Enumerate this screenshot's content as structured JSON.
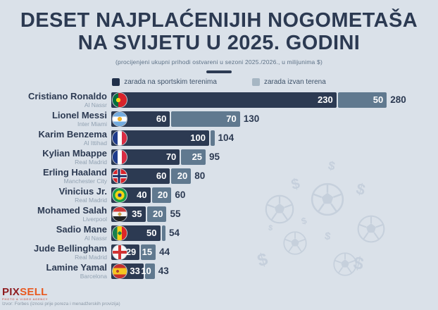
{
  "header": {
    "title_line1": "DESET NAJPLAĆENIJIH NOGOMETAŠA",
    "title_line2": "NA SVIJETU U 2025. GODINI",
    "subtitle": "(procijenjeni ukupni prihodi ostvareni u sezoni 2025./2026., u milijunima $)"
  },
  "legend": {
    "on_label": "zarada na sportskim terenima",
    "off_label": "zarada izvan terena"
  },
  "colors": {
    "background": "#dae1e9",
    "bar_on_field": "#2c3a52",
    "bar_off_field": "#60798f",
    "legend_off_swatch": "#a6b6c3",
    "title_text": "#2c3a52",
    "watermark": "#c2cdda"
  },
  "chart_data": {
    "type": "bar",
    "orientation": "horizontal",
    "stacked": true,
    "title": "DESET NAJPLAĆENIJIH NOGOMETAŠA NA SVIJETU U 2025. GODINI",
    "subtitle": "(procijenjeni ukupni prihodi ostvareni u sezoni 2025./2026., u milijunima $)",
    "unit": "milijuni $",
    "xlim": [
      0,
      280
    ],
    "legend_position": "top",
    "categories": [
      "Cristiano Ronaldo",
      "Lionel Messi",
      "Karim Benzema",
      "Kylian Mbappe",
      "Erling Haaland",
      "Vinicius Jr.",
      "Mohamed Salah",
      "Sadio Mane",
      "Jude Bellingham",
      "Lamine Yamal"
    ],
    "category_sublabels": [
      "Al Nassr",
      "Inter Miami",
      "Al Ittihad",
      "Real Madrid",
      "Manchester City",
      "Real Madrid",
      "Liverpool",
      "Al Nassr",
      "Real Madrid",
      "Barcelona"
    ],
    "series": [
      {
        "name": "zarada na sportskim terenima",
        "values": [
          230,
          60,
          100,
          70,
          60,
          40,
          35,
          50,
          29,
          33
        ]
      },
      {
        "name": "zarada izvan terena",
        "values": [
          50,
          70,
          4,
          25,
          20,
          20,
          20,
          4,
          15,
          10
        ]
      }
    ],
    "totals": [
      280,
      130,
      104,
      95,
      80,
      60,
      55,
      54,
      44,
      43
    ]
  },
  "players": [
    {
      "name": "Cristiano Ronaldo",
      "club": "Al Nassr",
      "flag": "pt",
      "on": 230,
      "off": 50,
      "on_label": "230",
      "off_label": "50",
      "total_label": "280"
    },
    {
      "name": "Lionel Messi",
      "club": "Inter Miami",
      "flag": "ar",
      "on": 60,
      "off": 70,
      "on_label": "60",
      "off_label": "70",
      "total_label": "130"
    },
    {
      "name": "Karim Benzema",
      "club": "Al Ittihad",
      "flag": "fr",
      "on": 100,
      "off": 4,
      "on_label": "100",
      "off_label": "",
      "total_label": "104"
    },
    {
      "name": "Kylian Mbappe",
      "club": "Real Madrid",
      "flag": "fr",
      "on": 70,
      "off": 25,
      "on_label": "70",
      "off_label": "25",
      "total_label": "95"
    },
    {
      "name": "Erling Haaland",
      "club": "Manchester City",
      "flag": "no",
      "on": 60,
      "off": 20,
      "on_label": "60",
      "off_label": "20",
      "total_label": "80"
    },
    {
      "name": "Vinicius Jr.",
      "club": "Real Madrid",
      "flag": "br",
      "on": 40,
      "off": 20,
      "on_label": "40",
      "off_label": "20",
      "total_label": "60"
    },
    {
      "name": "Mohamed Salah",
      "club": "Liverpool",
      "flag": "eg",
      "on": 35,
      "off": 20,
      "on_label": "35",
      "off_label": "20",
      "total_label": "55"
    },
    {
      "name": "Sadio Mane",
      "club": "Al Nassr",
      "flag": "sn",
      "on": 50,
      "off": 4,
      "on_label": "50",
      "off_label": "",
      "total_label": "54"
    },
    {
      "name": "Jude Bellingham",
      "club": "Real Madrid",
      "flag": "en",
      "on": 29,
      "off": 15,
      "on_label": "29",
      "off_label": "15",
      "total_label": "44"
    },
    {
      "name": "Lamine Yamal",
      "club": "Barcelona",
      "flag": "es",
      "on": 33,
      "off": 10,
      "on_label": "33",
      "off_label": "10",
      "total_label": "43"
    }
  ],
  "footer": {
    "logo_pix": "PIX",
    "logo_sell": "SELL",
    "logo_tagline": "PHOTO & VIDEO AGENCY",
    "source": "Izvor: Forbes (iznosi prije poreza i menadžerskih provizija)"
  },
  "icons": {
    "dollar_glyph": "$"
  }
}
